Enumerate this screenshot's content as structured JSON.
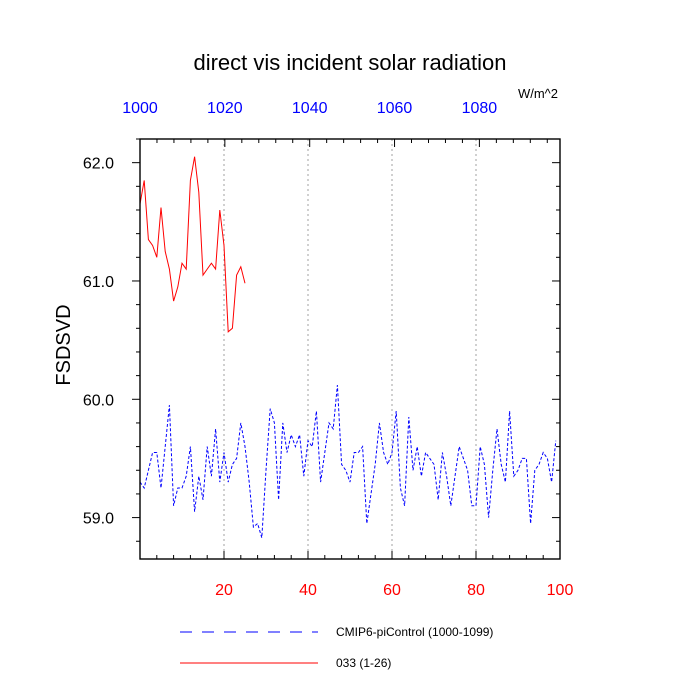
{
  "chart_data": {
    "type": "line",
    "title": "direct vis incident solar radiation",
    "ylabel": "FSDSVD",
    "units": "W/m^2",
    "xlim": [
      0,
      100
    ],
    "ylim": [
      58.65,
      62.2
    ],
    "top_axis_lim": [
      1000,
      1099
    ],
    "x_ticks": [
      20,
      40,
      60,
      80,
      100
    ],
    "top_ticks": [
      1000,
      1020,
      1040,
      1060,
      1080
    ],
    "y_ticks": [
      59.0,
      60.0,
      61.0,
      62.0
    ],
    "y_tick_labels": [
      "59.0",
      "60.0",
      "61.0",
      "62.0"
    ],
    "vertical_gridlines": [
      20,
      40,
      60,
      80
    ],
    "colors": {
      "series1": "#0000ff",
      "series2": "#ff0000",
      "bottom_axis": "#ff0000",
      "top_axis": "#0000ff"
    },
    "series": [
      {
        "name": "CMIP6-piControl (1000-1099)",
        "style": "dashed",
        "color": "#0000ff",
        "x": [
          0,
          1,
          2,
          3,
          4,
          5,
          6,
          7,
          8,
          9,
          10,
          11,
          12,
          13,
          14,
          15,
          16,
          17,
          18,
          19,
          20,
          21,
          22,
          23,
          24,
          25,
          26,
          27,
          28,
          29,
          30,
          31,
          32,
          33,
          34,
          35,
          36,
          37,
          38,
          39,
          40,
          41,
          42,
          43,
          44,
          45,
          46,
          47,
          48,
          49,
          50,
          51,
          52,
          53,
          54,
          55,
          56,
          57,
          58,
          59,
          60,
          61,
          62,
          63,
          64,
          65,
          66,
          67,
          68,
          69,
          70,
          71,
          72,
          73,
          74,
          75,
          76,
          77,
          78,
          79,
          80,
          81,
          82,
          83,
          84,
          85,
          86,
          87,
          88,
          89,
          90,
          91,
          92,
          93,
          94,
          95,
          96,
          97,
          98,
          99
        ],
        "values": [
          59.3,
          59.25,
          59.4,
          59.55,
          59.55,
          59.25,
          59.6,
          59.95,
          59.1,
          59.25,
          59.25,
          59.35,
          59.6,
          59.05,
          59.35,
          59.15,
          59.6,
          59.35,
          59.75,
          59.3,
          59.55,
          59.3,
          59.45,
          59.5,
          59.8,
          59.6,
          59.3,
          58.92,
          58.95,
          58.83,
          59.4,
          59.92,
          59.8,
          59.15,
          59.8,
          59.55,
          59.7,
          59.6,
          59.7,
          59.35,
          59.65,
          59.6,
          59.9,
          59.3,
          59.55,
          59.8,
          59.75,
          60.12,
          59.45,
          59.4,
          59.3,
          59.55,
          59.55,
          59.6,
          58.95,
          59.2,
          59.45,
          59.8,
          59.55,
          59.45,
          59.55,
          59.9,
          59.25,
          59.1,
          59.85,
          59.4,
          59.6,
          59.35,
          59.55,
          59.5,
          59.45,
          59.15,
          59.55,
          59.35,
          59.1,
          59.35,
          59.6,
          59.5,
          59.4,
          59.1,
          59.1,
          59.6,
          59.45,
          59.0,
          59.4,
          59.75,
          59.45,
          59.3,
          59.9,
          59.35,
          59.4,
          59.5,
          59.5,
          58.95,
          59.4,
          59.45,
          59.55,
          59.5,
          59.3,
          59.65
        ]
      },
      {
        "name": "033 (1-26)",
        "style": "solid",
        "color": "#ff0000",
        "x": [
          0,
          1,
          2,
          3,
          4,
          5,
          6,
          7,
          8,
          9,
          10,
          11,
          12,
          13,
          14,
          15,
          16,
          17,
          18,
          19,
          20,
          21,
          22,
          23,
          24,
          25
        ],
        "values": [
          61.65,
          61.85,
          61.35,
          61.3,
          61.2,
          61.62,
          61.25,
          61.1,
          60.83,
          60.95,
          61.15,
          61.1,
          61.85,
          62.05,
          61.75,
          61.05,
          61.1,
          61.15,
          61.1,
          61.6,
          61.3,
          60.57,
          60.6,
          61.05,
          61.12,
          60.98
        ]
      }
    ]
  }
}
